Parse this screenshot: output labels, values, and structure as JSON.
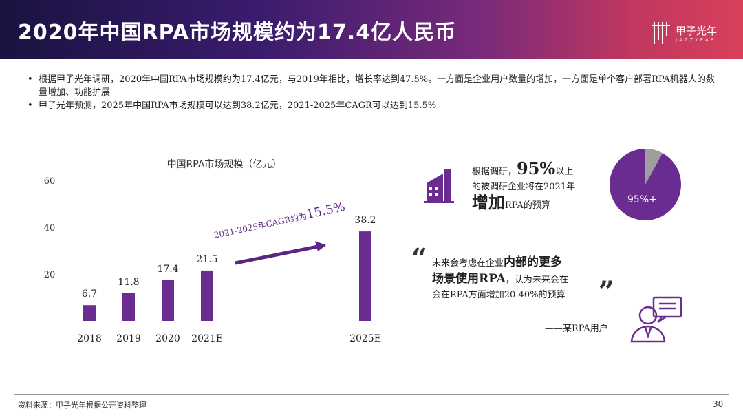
{
  "header": {
    "title": "2020年中国RPA市场规模约为17.4亿人民币",
    "logo_text": "甲子光年",
    "logo_sub": "JAZZYEAR"
  },
  "bullets": [
    "根据甲子光年调研，2020年中国RPA市场规模约为17.4亿元，与2019年相比，增长率达到47.5%。一方面是企业用户数量的增加，一方面是单个客户部署RPA机器人的数量增加、功能扩展",
    "甲子光年预测，2025年中国RPA市场规模可以达到38.2亿元，2021-2025年CAGR可以达到15.5%"
  ],
  "chart_data": {
    "type": "bar",
    "title": "中国RPA市场规模（亿元）",
    "categories": [
      "2018",
      "2019",
      "2020",
      "2021E",
      "2025E"
    ],
    "values": [
      6.7,
      11.8,
      17.4,
      21.5,
      38.2
    ],
    "value_labels": [
      "6.7",
      "11.8",
      "17.4",
      "21.5",
      "38.2"
    ],
    "y_ticks": [
      "60",
      "40",
      "20",
      "-"
    ],
    "ylim": [
      0,
      60
    ],
    "annotation_prefix": "2021-2025年CAGR约为",
    "annotation_value": "15.5%",
    "bar_color": "#6a2c91"
  },
  "stat": {
    "line1_a": "根据调研，",
    "line1_big": "95%",
    "line1_b": "以上",
    "line2": "的被调研企业将在2021年",
    "line3_big": "增加",
    "line3_b": "RPA的预算",
    "pie_label": "95%+",
    "pie_value": 95
  },
  "quote": {
    "open": "“",
    "close": "”",
    "l1_a": "未来会考虑在企业",
    "l1_big": "内部的更多",
    "l2_big": "场景使用RPA",
    "l2_b": "，认为未来会在",
    "l3": "会在RPA方面增加20-40%的预算",
    "attribution": "——某RPA用户"
  },
  "footer": {
    "source": "资料来源：甲子光年根据公开资料整理",
    "page": "30"
  },
  "colors": {
    "accent": "#6a2c91",
    "pie_remainder": "#9e9e9e"
  }
}
